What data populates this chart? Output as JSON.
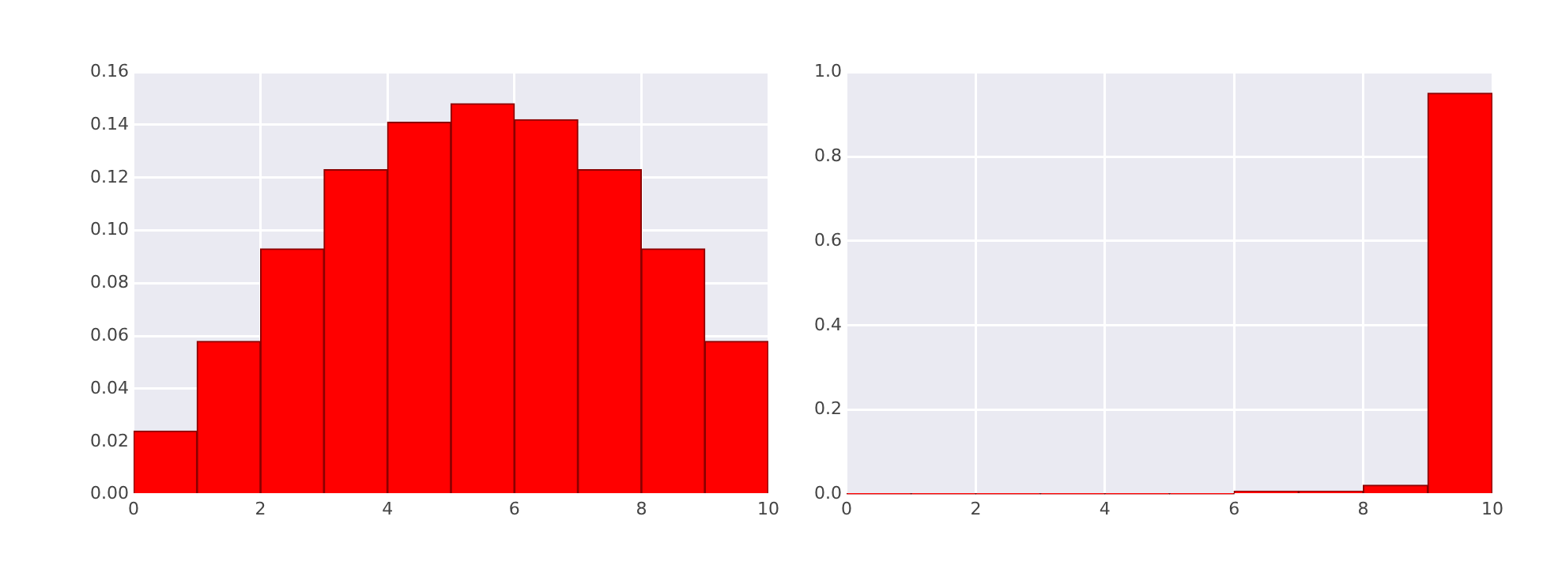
{
  "chart_data": [
    {
      "type": "histogram",
      "bins": [
        0,
        1,
        2,
        3,
        4,
        5,
        6,
        7,
        8,
        9,
        10
      ],
      "values": [
        0.024,
        0.058,
        0.093,
        0.123,
        0.141,
        0.148,
        0.142,
        0.123,
        0.093,
        0.058
      ],
      "color": "#ff0000",
      "xlim": [
        0,
        10
      ],
      "xticks": [
        0,
        2,
        4,
        6,
        8,
        10
      ],
      "ylim": [
        0,
        0.16
      ],
      "yticks": [
        {
          "value": 0,
          "label": "0.00"
        },
        {
          "value": 0.02,
          "label": "0.02"
        },
        {
          "value": 0.04,
          "label": "0.04"
        },
        {
          "value": 0.06,
          "label": "0.06"
        },
        {
          "value": 0.08,
          "label": "0.08"
        },
        {
          "value": 0.1,
          "label": "0.10"
        },
        {
          "value": 0.12,
          "label": "0.12"
        },
        {
          "value": 0.14,
          "label": "0.14"
        },
        {
          "value": 0.16,
          "label": "0.16"
        }
      ],
      "grid": true
    },
    {
      "type": "histogram",
      "bins": [
        0,
        1,
        2,
        3,
        4,
        5,
        6,
        7,
        8,
        9,
        10
      ],
      "values": [
        0.001,
        0.001,
        0.001,
        0.001,
        0.001,
        0.001,
        0.008,
        0.008,
        0.022,
        0.95
      ],
      "color": "#ff0000",
      "xlim": [
        0,
        10
      ],
      "xticks": [
        0,
        2,
        4,
        6,
        8,
        10
      ],
      "ylim": [
        0,
        1
      ],
      "yticks": [
        {
          "value": 0,
          "label": "0.0"
        },
        {
          "value": 0.2,
          "label": "0.2"
        },
        {
          "value": 0.4,
          "label": "0.4"
        },
        {
          "value": 0.6,
          "label": "0.6"
        },
        {
          "value": 0.8,
          "label": "0.8"
        },
        {
          "value": 1,
          "label": "1.0"
        }
      ],
      "grid": true
    }
  ]
}
